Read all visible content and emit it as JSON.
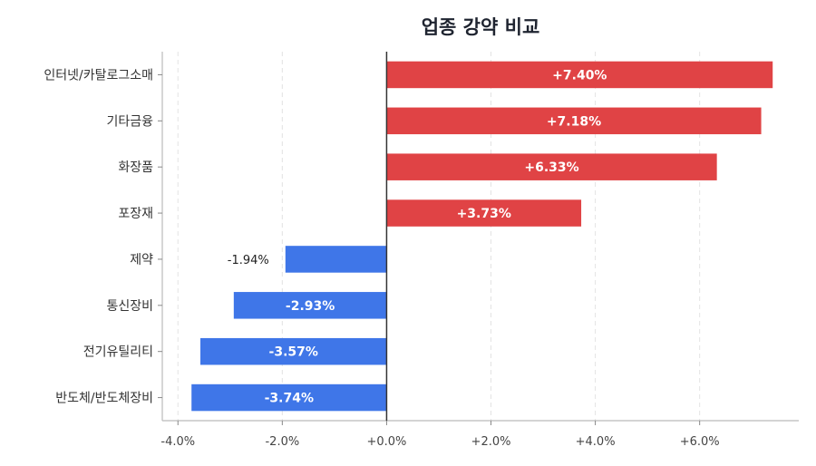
{
  "chart_data": {
    "type": "bar",
    "orientation": "horizontal",
    "title": "업종 강약 비교",
    "categories": [
      "인터넷/카탈로그소매",
      "기타금융",
      "화장품",
      "포장재",
      "제약",
      "통신장비",
      "전기유틸리티",
      "반도체/반도체장비"
    ],
    "values": [
      7.4,
      7.18,
      6.33,
      3.73,
      -1.94,
      -2.93,
      -3.57,
      -3.74
    ],
    "value_labels": [
      "+7.40%",
      "+7.18%",
      "+6.33%",
      "+3.73%",
      "-1.94%",
      "-2.93%",
      "-3.57%",
      "-3.74%"
    ],
    "xlim": [
      -4.3,
      7.9
    ],
    "xticks": [
      -4,
      -2,
      0,
      2,
      4,
      6
    ],
    "xtick_labels": [
      "-4.0%",
      "-2.0%",
      "+0.0%",
      "+2.0%",
      "+4.0%",
      "+6.0%"
    ],
    "xlabel": "",
    "ylabel": "",
    "grid": "vertical dashed",
    "colors": {
      "positive": "#e04345",
      "negative": "#3f76e8",
      "zero_line": "#333333",
      "axis": "#bbbbbb",
      "grid": "#e3e3e3"
    }
  }
}
